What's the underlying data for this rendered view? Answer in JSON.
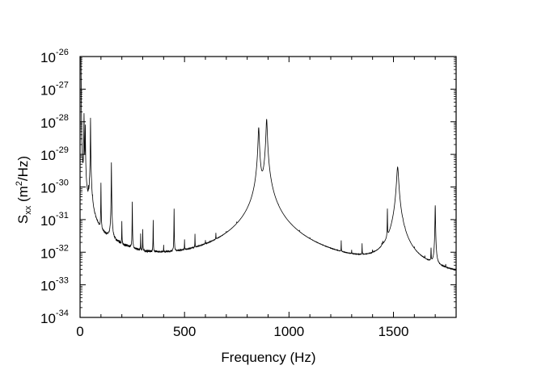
{
  "chart_data": {
    "type": "line",
    "xlabel": "Frequency (Hz)",
    "ylabel": {
      "main": "S",
      "sub": "xx",
      "unit_pre": " (m",
      "sup": "2",
      "unit_post": "/Hz)"
    },
    "xlim": [
      0,
      1800
    ],
    "ylim_exponent": [
      -34,
      -26
    ],
    "y_scale": "log",
    "grid": false,
    "x_ticks": [
      "0",
      "500",
      "1000",
      "1500"
    ],
    "y_ticks": [
      {
        "base": "10",
        "exp": "-26"
      },
      {
        "base": "10",
        "exp": "-27"
      },
      {
        "base": "10",
        "exp": "-28"
      },
      {
        "base": "10",
        "exp": "-29"
      },
      {
        "base": "10",
        "exp": "-30"
      },
      {
        "base": "10",
        "exp": "-31"
      },
      {
        "base": "10",
        "exp": "-32"
      },
      {
        "base": "10",
        "exp": "-33"
      },
      {
        "base": "10",
        "exp": "-34"
      }
    ],
    "series_color": "#000000",
    "noise_floor_log10": [
      [
        0,
        -24
      ],
      [
        4,
        -26
      ],
      [
        8,
        -28.5
      ],
      [
        15,
        -29.8
      ],
      [
        25,
        -30.4
      ],
      [
        40,
        -30.9
      ],
      [
        60,
        -31.25
      ],
      [
        100,
        -31.63
      ],
      [
        200,
        -31.96
      ],
      [
        300,
        -32.24
      ],
      [
        400,
        -32.37
      ],
      [
        500,
        -32.49
      ],
      [
        600,
        -32.58
      ],
      [
        700,
        -32.65
      ],
      [
        800,
        -32.72
      ],
      [
        900,
        -32.78
      ],
      [
        1000,
        -32.85
      ],
      [
        1200,
        -32.93
      ],
      [
        1400,
        -33.0
      ],
      [
        1500,
        -33.02
      ],
      [
        1600,
        -33.15
      ],
      [
        1800,
        -33.25
      ]
    ],
    "peaks_log10": [
      {
        "f": 19,
        "level": -27.74,
        "width": 0.6
      },
      {
        "f": 25,
        "level": -28.1,
        "width": 0.6
      },
      {
        "f": 40,
        "level": -30.4,
        "width": 0.5
      },
      {
        "f": 45,
        "level": -30.5,
        "width": 0.5
      },
      {
        "f": 50,
        "level": -27.88,
        "width": 0.5
      },
      {
        "f": 55,
        "level": -30.9,
        "width": 0.5
      },
      {
        "f": 60,
        "level": -31.0,
        "width": 0.5
      },
      {
        "f": 100,
        "level": -29.89,
        "width": 0.5
      },
      {
        "f": 150,
        "level": -29.25,
        "width": 0.5
      },
      {
        "f": 200,
        "level": -31.15,
        "width": 0.5
      },
      {
        "f": 250,
        "level": -30.47,
        "width": 0.5
      },
      {
        "f": 290,
        "level": -31.6,
        "width": 0.5
      },
      {
        "f": 300,
        "level": -31.4,
        "width": 0.5
      },
      {
        "f": 350,
        "level": -31.06,
        "width": 0.5
      },
      {
        "f": 400,
        "level": -32.2,
        "width": 0.5
      },
      {
        "f": 450,
        "level": -30.69,
        "width": 0.5
      },
      {
        "f": 500,
        "level": -31.9,
        "width": 0.5
      },
      {
        "f": 550,
        "level": -31.66,
        "width": 0.5
      },
      {
        "f": 600,
        "level": -32.3,
        "width": 0.5
      },
      {
        "f": 650,
        "level": -31.85,
        "width": 0.5
      },
      {
        "f": 700,
        "level": -32.4,
        "width": 0.5
      },
      {
        "f": 750,
        "level": -32.03,
        "width": 0.5
      },
      {
        "f": 855,
        "level": -28.18,
        "width": 2.5
      },
      {
        "f": 893,
        "level": -27.92,
        "width": 2.5
      },
      {
        "f": 950,
        "level": -31.96,
        "width": 0.5
      },
      {
        "f": 1050,
        "level": -32.3,
        "width": 0.5
      },
      {
        "f": 1100,
        "level": -32.7,
        "width": 0.5
      },
      {
        "f": 1250,
        "level": -31.91,
        "width": 0.5
      },
      {
        "f": 1300,
        "level": -32.57,
        "width": 0.5
      },
      {
        "f": 1350,
        "level": -32.0,
        "width": 0.5
      },
      {
        "f": 1400,
        "level": -32.7,
        "width": 0.5
      },
      {
        "f": 1445,
        "level": -32.5,
        "width": 0.8
      },
      {
        "f": 1450,
        "level": -32.4,
        "width": 0.8
      },
      {
        "f": 1471,
        "level": -30.73,
        "width": 0.6
      },
      {
        "f": 1520,
        "level": -29.39,
        "width": 4
      },
      {
        "f": 1545,
        "level": -32.1,
        "width": 0.8
      },
      {
        "f": 1555,
        "level": -32.4,
        "width": 0.8
      },
      {
        "f": 1600,
        "level": -32.8,
        "width": 0.5
      },
      {
        "f": 1650,
        "level": -32.9,
        "width": 0.6
      },
      {
        "f": 1680,
        "level": -32.1,
        "width": 0.8
      },
      {
        "f": 1700,
        "level": -30.57,
        "width": 1.0
      },
      {
        "f": 1750,
        "level": -33.1,
        "width": 0.5
      }
    ]
  }
}
